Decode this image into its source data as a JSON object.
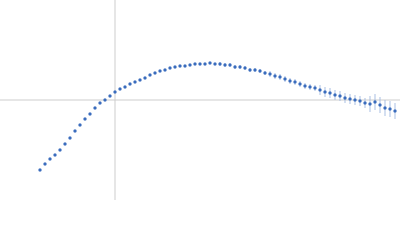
{
  "chart_data": {
    "type": "scatter",
    "x": [
      -0.75,
      -0.7,
      -0.65,
      -0.6,
      -0.55,
      -0.5,
      -0.45,
      -0.4,
      -0.35,
      -0.3,
      -0.25,
      -0.2,
      -0.15,
      -0.1,
      -0.05,
      0.0,
      0.05,
      0.1,
      0.15,
      0.2,
      0.25,
      0.3,
      0.35,
      0.4,
      0.45,
      0.5,
      0.55,
      0.6,
      0.65,
      0.7,
      0.75,
      0.8,
      0.85,
      0.9,
      0.95,
      1.0,
      1.05,
      1.1,
      1.15,
      1.2,
      1.25,
      1.3,
      1.35,
      1.4,
      1.45,
      1.5,
      1.55,
      1.6,
      1.65,
      1.7,
      1.75,
      1.8,
      1.85,
      1.9,
      1.95,
      2.0,
      2.05,
      2.1,
      2.15,
      2.2,
      2.25,
      2.3,
      2.35,
      2.4,
      2.45,
      2.5,
      2.55,
      2.6,
      2.65,
      2.7,
      2.75,
      2.8
    ],
    "series": [
      {
        "color": "#3a6cbd",
        "error_color": "#a9bfe3",
        "values": [
          -0.7,
          -0.64,
          -0.59,
          -0.55,
          -0.5,
          -0.44,
          -0.38,
          -0.31,
          -0.25,
          -0.19,
          -0.14,
          -0.08,
          -0.03,
          0.0,
          0.04,
          0.08,
          0.11,
          0.13,
          0.16,
          0.18,
          0.2,
          0.22,
          0.25,
          0.27,
          0.29,
          0.3,
          0.32,
          0.33,
          0.34,
          0.34,
          0.35,
          0.36,
          0.36,
          0.36,
          0.37,
          0.36,
          0.36,
          0.35,
          0.35,
          0.33,
          0.33,
          0.32,
          0.3,
          0.3,
          0.29,
          0.27,
          0.26,
          0.24,
          0.23,
          0.21,
          0.19,
          0.18,
          0.16,
          0.14,
          0.13,
          0.12,
          0.1,
          0.08,
          0.07,
          0.05,
          0.04,
          0.02,
          0.01,
          0.0,
          -0.01,
          -0.03,
          -0.04,
          -0.02,
          -0.05,
          -0.08,
          -0.09,
          -0.11
        ],
        "errors": [
          0.01,
          0.01,
          0.01,
          0.01,
          0.01,
          0.01,
          0.01,
          0.01,
          0.01,
          0.01,
          0.01,
          0.01,
          0.01,
          0.01,
          0.01,
          0.01,
          0.01,
          0.01,
          0.01,
          0.01,
          0.01,
          0.01,
          0.01,
          0.01,
          0.01,
          0.01,
          0.01,
          0.01,
          0.01,
          0.01,
          0.01,
          0.01,
          0.01,
          0.01,
          0.01,
          0.01,
          0.02,
          0.02,
          0.02,
          0.02,
          0.02,
          0.02,
          0.02,
          0.02,
          0.02,
          0.02,
          0.03,
          0.03,
          0.03,
          0.03,
          0.03,
          0.03,
          0.03,
          0.03,
          0.03,
          0.03,
          0.05,
          0.05,
          0.05,
          0.05,
          0.05,
          0.05,
          0.05,
          0.05,
          0.05,
          0.05,
          0.08,
          0.08,
          0.08,
          0.08,
          0.08,
          0.08
        ]
      }
    ],
    "xlim": [
      -1.15,
      2.85
    ],
    "ylim": [
      -1,
      1
    ],
    "xticks": [
      0
    ],
    "yticks": [
      0
    ],
    "grid": true,
    "grid_color": "#cccccc"
  }
}
